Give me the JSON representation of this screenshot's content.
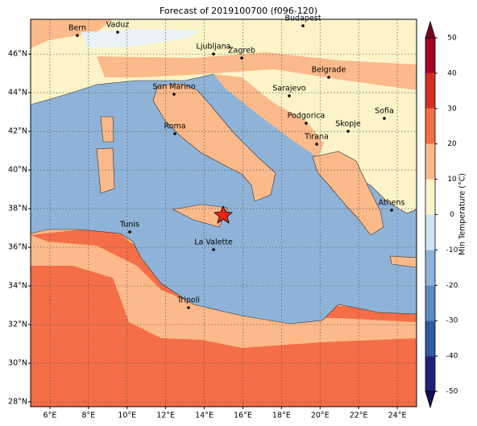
{
  "title": "Forecast of 2019100700 (f096-120)",
  "map": {
    "lonlim": [
      5,
      25
    ],
    "latlim": [
      27.75,
      47.8
    ],
    "lon_ticks": [
      {
        "value": 6,
        "label": "6°E"
      },
      {
        "value": 8,
        "label": "8°E"
      },
      {
        "value": 10,
        "label": "10°E"
      },
      {
        "value": 12,
        "label": "12°E"
      },
      {
        "value": 14,
        "label": "14°E"
      },
      {
        "value": 16,
        "label": "16°E"
      },
      {
        "value": 18,
        "label": "18°E"
      },
      {
        "value": 20,
        "label": "20°E"
      },
      {
        "value": 22,
        "label": "22°E"
      },
      {
        "value": 24,
        "label": "24°E"
      }
    ],
    "lat_ticks": [
      {
        "value": 28,
        "label": "28°N"
      },
      {
        "value": 30,
        "label": "30°N"
      },
      {
        "value": 32,
        "label": "32°N"
      },
      {
        "value": 34,
        "label": "34°N"
      },
      {
        "value": 36,
        "label": "36°N"
      },
      {
        "value": 38,
        "label": "38°N"
      },
      {
        "value": 40,
        "label": "40°N"
      },
      {
        "value": 42,
        "label": "42°N"
      },
      {
        "value": 44,
        "label": "44°N"
      },
      {
        "value": 46,
        "label": "46°N"
      }
    ],
    "grid": true
  },
  "cities": [
    "Bern",
    "Vaduz",
    "Budapest",
    "Ljubljana",
    "Zagreb",
    "Belgrade",
    "San Marino",
    "Sarajevo",
    "Sofia",
    "Podgorica",
    "Skopje",
    "Roma",
    "Tirana",
    "Athens",
    "Tunis",
    "La Valette",
    "Tripoli"
  ],
  "colorbar": {
    "label": "Min Temperature (°C)",
    "lim": [
      -50,
      50
    ],
    "ticks": [
      -50,
      -40,
      -30,
      -20,
      -10,
      0,
      10,
      20,
      30,
      40,
      50
    ],
    "colors": [
      "#1f2178",
      "#2f5ba3",
      "#5b8cc2",
      "#8fb3d8",
      "#cfe4f0",
      "#fcf4c8",
      "#fcb98a",
      "#f46e47",
      "#d42f22",
      "#a50026"
    ],
    "under_color": "#10105a",
    "over_color": "#800020"
  }
}
